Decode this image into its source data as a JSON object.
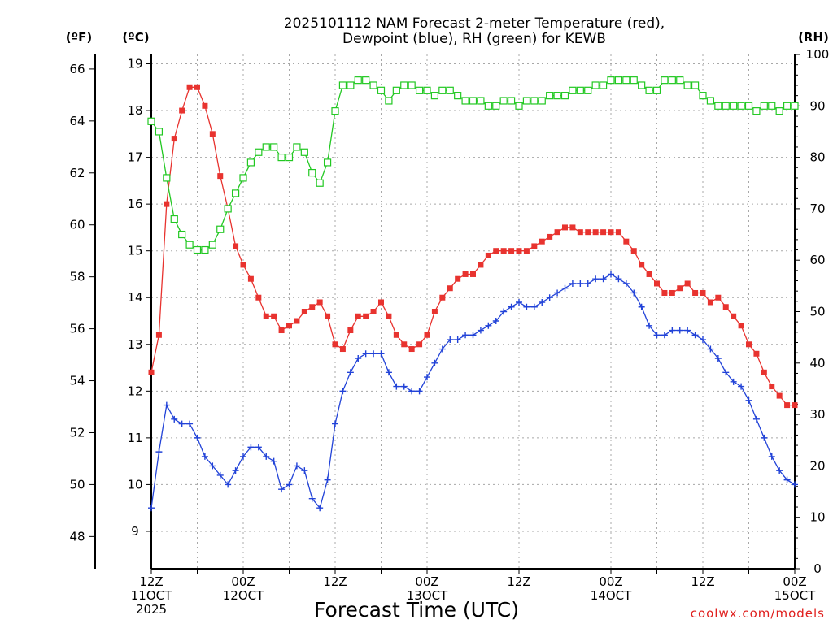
{
  "chart_data": {
    "type": "line",
    "title_line1": "2025101112 NAM Forecast 2-meter Temperature (red),",
    "title_line2": "Dewpoint (blue), RH (green) for KEWB",
    "xlabel": "Forecast Time (UTC)",
    "x_range_hours": [
      0,
      84
    ],
    "x_ticks": [
      {
        "hour": 0,
        "lines": [
          "12Z",
          "11OCT",
          "2025"
        ]
      },
      {
        "hour": 12,
        "lines": [
          "00Z",
          "12OCT"
        ]
      },
      {
        "hour": 24,
        "lines": [
          "12Z"
        ]
      },
      {
        "hour": 36,
        "lines": [
          "00Z",
          "13OCT"
        ]
      },
      {
        "hour": 48,
        "lines": [
          "12Z"
        ]
      },
      {
        "hour": 60,
        "lines": [
          "00Z",
          "14OCT"
        ]
      },
      {
        "hour": 72,
        "lines": [
          "12Z"
        ]
      },
      {
        "hour": 84,
        "lines": [
          "00Z",
          "15OCT"
        ]
      }
    ],
    "y_left_celsius": {
      "label": "(ºC)",
      "range": [
        8.2,
        19.2
      ],
      "ticks": [
        9,
        10,
        11,
        12,
        13,
        14,
        15,
        16,
        17,
        18,
        19
      ]
    },
    "y_left_fahrenheit": {
      "label": "(ºF)",
      "ticks": [
        48,
        50,
        52,
        54,
        56,
        58,
        60,
        62,
        64,
        66
      ]
    },
    "y_right_rh": {
      "label": "(RH)",
      "range": [
        0,
        100
      ],
      "ticks": [
        0,
        10,
        20,
        30,
        40,
        50,
        60,
        70,
        80,
        90,
        100
      ]
    },
    "grid": true,
    "series": [
      {
        "name": "Temperature",
        "color": "#e8332f",
        "marker": "filled-square",
        "axis": "celsius",
        "values": [
          12.4,
          13.2,
          16.0,
          17.4,
          18.0,
          18.5,
          18.5,
          18.1,
          17.5,
          16.6,
          15.9,
          15.1,
          14.7,
          14.4,
          14.0,
          13.6,
          13.6,
          13.3,
          13.4,
          13.5,
          13.7,
          13.8,
          13.9,
          13.6,
          13.0,
          12.9,
          13.3,
          13.6,
          13.6,
          13.7,
          13.9,
          13.6,
          13.2,
          13.0,
          12.9,
          13.0,
          13.2,
          13.7,
          14.0,
          14.2,
          14.4,
          14.5,
          14.5,
          14.7,
          14.9,
          15.0,
          15.0,
          15.0,
          15.0,
          15.0,
          15.1,
          15.2,
          15.3,
          15.4,
          15.5,
          15.5,
          15.4,
          15.4,
          15.4,
          15.4,
          15.4,
          15.4,
          15.2,
          15.0,
          14.7,
          14.5,
          14.3,
          14.1,
          14.1,
          14.2,
          14.3,
          14.1,
          14.1,
          13.9,
          14.0,
          13.8,
          13.6,
          13.4,
          13.0,
          12.8,
          12.4,
          12.1,
          11.9,
          11.7,
          11.7
        ]
      },
      {
        "name": "Dewpoint",
        "color": "#2243d8",
        "marker": "plus",
        "axis": "celsius",
        "values": [
          9.5,
          10.7,
          11.7,
          11.4,
          11.3,
          11.3,
          11.0,
          10.6,
          10.4,
          10.2,
          10.0,
          10.3,
          10.6,
          10.8,
          10.8,
          10.6,
          10.5,
          9.9,
          10.0,
          10.4,
          10.3,
          9.7,
          9.5,
          10.1,
          11.3,
          12.0,
          12.4,
          12.7,
          12.8,
          12.8,
          12.8,
          12.4,
          12.1,
          12.1,
          12.0,
          12.0,
          12.3,
          12.6,
          12.9,
          13.1,
          13.1,
          13.2,
          13.2,
          13.3,
          13.4,
          13.5,
          13.7,
          13.8,
          13.9,
          13.8,
          13.8,
          13.9,
          14.0,
          14.1,
          14.2,
          14.3,
          14.3,
          14.3,
          14.4,
          14.4,
          14.5,
          14.4,
          14.3,
          14.1,
          13.8,
          13.4,
          13.2,
          13.2,
          13.3,
          13.3,
          13.3,
          13.2,
          13.1,
          12.9,
          12.7,
          12.4,
          12.2,
          12.1,
          11.8,
          11.4,
          11.0,
          10.6,
          10.3,
          10.1,
          10.0
        ]
      },
      {
        "name": "RH",
        "color": "#22c822",
        "marker": "open-square",
        "axis": "rh",
        "values": [
          87,
          85,
          76,
          68,
          65,
          63,
          62,
          62,
          63,
          66,
          70,
          73,
          76,
          79,
          81,
          82,
          82,
          80,
          80,
          82,
          81,
          77,
          75,
          79,
          89,
          94,
          94,
          95,
          95,
          94,
          93,
          91,
          93,
          94,
          94,
          93,
          93,
          92,
          93,
          93,
          92,
          91,
          91,
          91,
          90,
          90,
          91,
          91,
          90,
          91,
          91,
          91,
          92,
          92,
          92,
          93,
          93,
          93,
          94,
          94,
          95,
          95,
          95,
          95,
          94,
          93,
          93,
          95,
          95,
          95,
          94,
          94,
          92,
          91,
          90,
          90,
          90,
          90,
          90,
          89,
          90,
          90,
          89,
          90,
          90
        ]
      }
    ]
  },
  "credit": "coolwx.com/models"
}
